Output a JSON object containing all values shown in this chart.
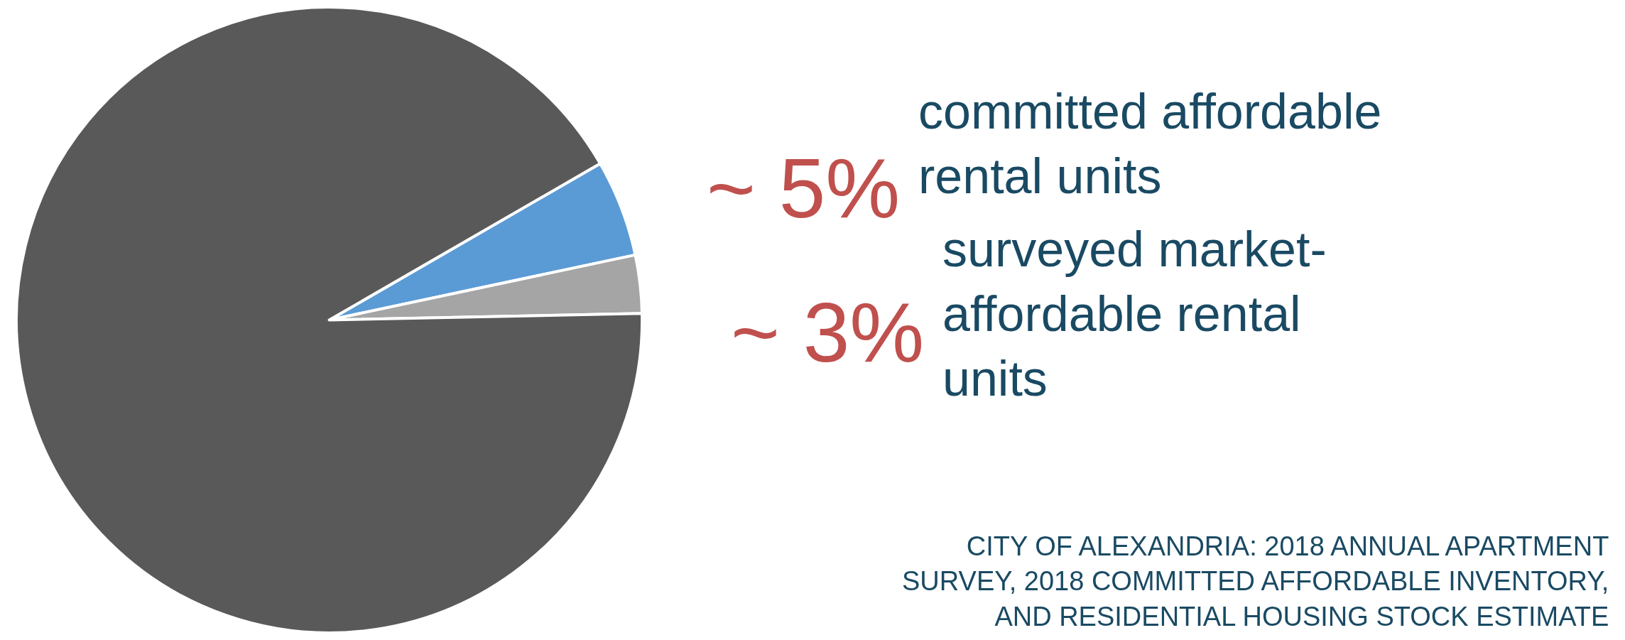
{
  "chart_data": {
    "type": "pie",
    "categories": [
      "committed affordable rental units",
      "surveyed market-affordable rental units",
      null
    ],
    "values": [
      5,
      3,
      92
    ],
    "colors": [
      "#5b9bd5",
      "#a5a5a5",
      "#595959"
    ],
    "value_labels": [
      "~ 5%",
      "~ 3%",
      null
    ],
    "annotations": [
      "CITY OF ALEXANDRIA: 2018 ANNUAL APARTMENT SURVEY, 2018 COMMITTED AFFORDABLE INVENTORY, AND RESIDENTIAL HOUSING STOCK ESTIMATE"
    ]
  }
}
